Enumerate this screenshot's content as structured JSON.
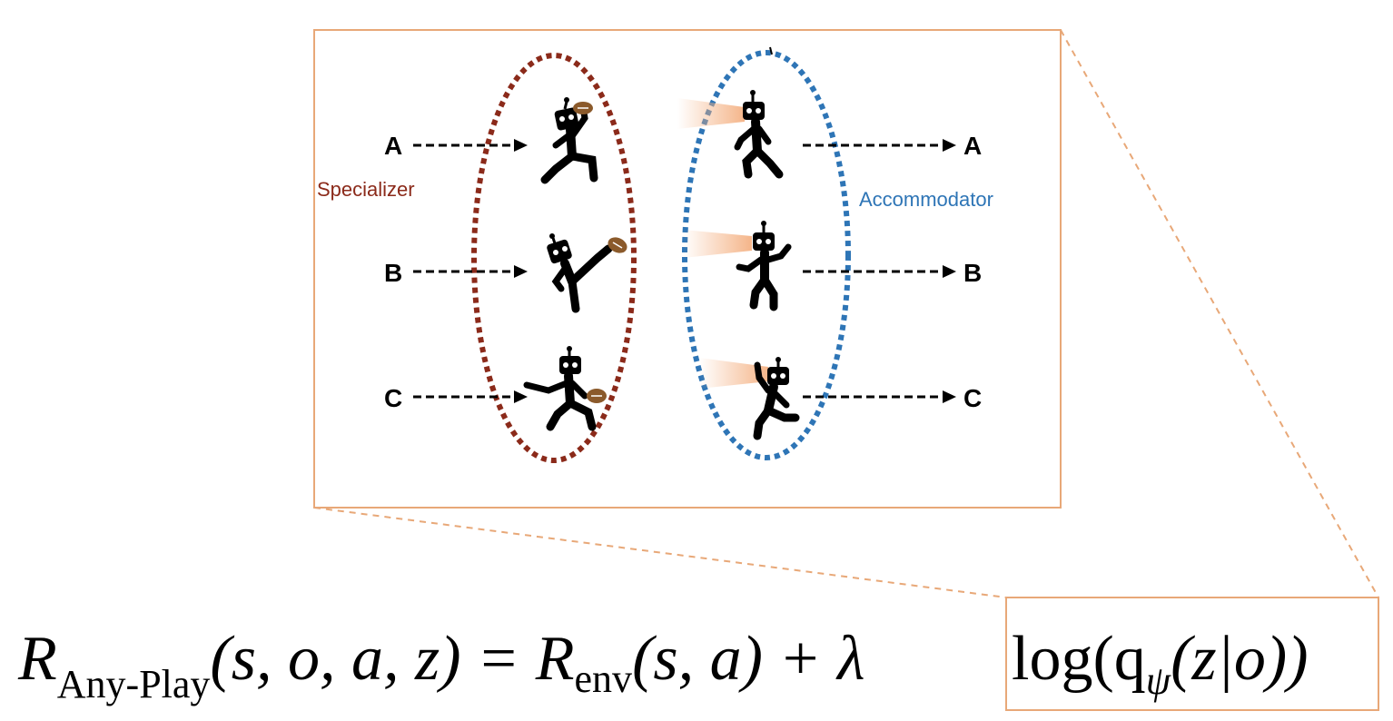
{
  "groups": {
    "specializer": {
      "label": "Specializer",
      "color": "#8B2A1A"
    },
    "accommodator": {
      "label": "Accommodator",
      "color": "#2E75B6"
    }
  },
  "inputs": [
    "A",
    "B",
    "C"
  ],
  "outputs": [
    "A",
    "B",
    "C"
  ],
  "colors": {
    "frame": "#E8A878",
    "ball": "#8B5A2B",
    "beam": "#F4B183"
  },
  "equation": {
    "R": "R",
    "sub_anyplay": "Any-Play",
    "args1": "(s, o, a, z) = ",
    "sub_env": "env",
    "args2": "(s, a) + λ ",
    "log_open": "log(q",
    "sub_psi": "ψ",
    "log_close": "(z|o))"
  }
}
